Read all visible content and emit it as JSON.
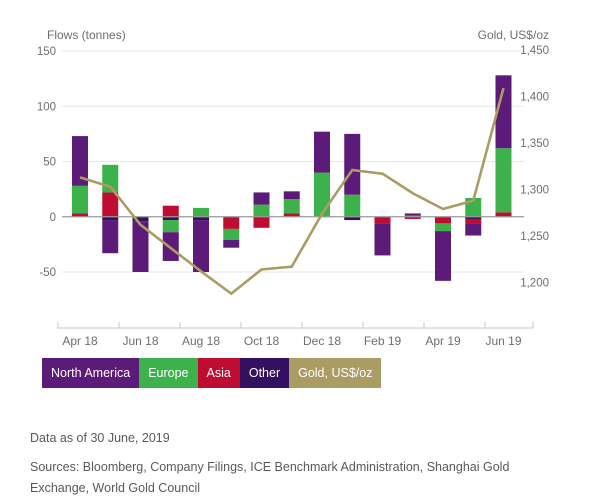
{
  "chart": {
    "left_axis_title": "Flows (tonnes)",
    "right_axis_title": "Gold, US$/oz",
    "left_ticks": [
      150,
      100,
      50,
      0,
      -50
    ],
    "right_ticks": [
      1450,
      1400,
      1350,
      1300,
      1250,
      1200
    ],
    "colors": {
      "grid": "#e7e7e7",
      "zero_line": "#9a9a9a",
      "axis_line": "#c9c9c9",
      "tick_text": "#6e6e6e"
    }
  },
  "chart_data": {
    "type": "bar",
    "subtype": "stacked-bar-with-line",
    "title": "",
    "xlabel": "",
    "ylabel_left": "Flows (tonnes)",
    "ylabel_right": "Gold, US$/oz",
    "left_ylim": [
      -100,
      150
    ],
    "right_ylim": [
      1150,
      1450
    ],
    "grid": "horizontal-left-axis-only",
    "legend_position": "bottom",
    "categories": [
      "Apr 18",
      "May 18",
      "Jun 18",
      "Jul 18",
      "Aug 18",
      "Sep 18",
      "Oct 18",
      "Nov 18",
      "Dec 18",
      "Jan 19",
      "Feb 19",
      "Mar 19",
      "Apr 19",
      "May 19",
      "Jun 19"
    ],
    "x_tick_labels": [
      "Apr 18",
      "Jun 18",
      "Aug 18",
      "Oct 18",
      "Dec 18",
      "Feb 19",
      "Apr 19",
      "Jun 19"
    ],
    "stack_order_from_zero": [
      "Other",
      "Asia",
      "Europe",
      "North America"
    ],
    "series": [
      {
        "name": "North America",
        "type": "bar",
        "color": "#5c1a79",
        "values": [
          45,
          -30,
          -46,
          -26,
          -47,
          -7,
          11,
          7,
          37,
          55,
          -29,
          2,
          -45,
          -11,
          66
        ]
      },
      {
        "name": "Europe",
        "type": "bar",
        "color": "#3eb24a",
        "values": [
          25,
          25,
          0,
          -11,
          8,
          -10,
          11,
          13,
          40,
          20,
          0,
          1,
          -7,
          17,
          58
        ]
      },
      {
        "name": "Asia",
        "type": "bar",
        "color": "#be0d30",
        "values": [
          3,
          22,
          0,
          10,
          0,
          -11,
          -10,
          3,
          0,
          0,
          -6,
          -2,
          -6,
          -4,
          4
        ]
      },
      {
        "name": "Other",
        "type": "bar",
        "color": "#331060",
        "values": [
          0,
          -3,
          -4,
          -3,
          -3,
          0,
          0,
          0,
          0,
          -3,
          0,
          0,
          0,
          -2,
          0
        ]
      },
      {
        "name": "Gold, US$/oz",
        "type": "line",
        "color": "#ab9c64",
        "values": [
          1313,
          1303,
          1262,
          1237,
          1212,
          1188,
          1214,
          1217,
          1274,
          1321,
          1317,
          1296,
          1279,
          1288,
          1409
        ]
      }
    ]
  },
  "footer": {
    "data_as_of": "Data as of 30 June, 2019",
    "sources": "Sources: Bloomberg, Company Filings, ICE Benchmark Administration, Shanghai Gold Exchange, World Gold Council"
  }
}
